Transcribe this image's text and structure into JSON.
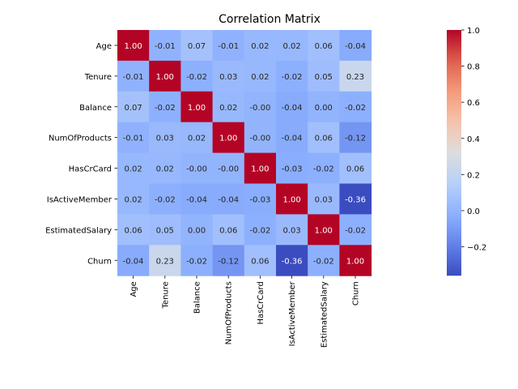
{
  "chart_data": {
    "type": "heatmap",
    "title": "Correlation Matrix",
    "xlabel": "",
    "ylabel": "",
    "x_labels": [
      "Age",
      "Tenure",
      "Balance",
      "NumOfProducts",
      "HasCrCard",
      "IsActiveMember",
      "EstimatedSalary",
      "Churn"
    ],
    "y_labels": [
      "Age",
      "Tenure",
      "Balance",
      "NumOfProducts",
      "HasCrCard",
      "IsActiveMember",
      "EstimatedSalary",
      "Churn"
    ],
    "values": [
      [
        1.0,
        -0.01,
        0.07,
        -0.01,
        0.02,
        0.02,
        0.06,
        -0.04
      ],
      [
        -0.01,
        1.0,
        -0.02,
        0.03,
        0.02,
        -0.02,
        0.05,
        0.23
      ],
      [
        0.07,
        -0.02,
        1.0,
        0.02,
        -0.0,
        -0.04,
        0.0,
        -0.02
      ],
      [
        -0.01,
        0.03,
        0.02,
        1.0,
        -0.0,
        -0.04,
        0.06,
        -0.12
      ],
      [
        0.02,
        0.02,
        -0.0,
        -0.0,
        1.0,
        -0.03,
        -0.02,
        0.06
      ],
      [
        0.02,
        -0.02,
        -0.04,
        -0.04,
        -0.03,
        1.0,
        0.03,
        -0.36
      ],
      [
        0.06,
        0.05,
        0.0,
        0.06,
        -0.02,
        0.03,
        1.0,
        -0.02
      ],
      [
        -0.04,
        0.23,
        -0.02,
        -0.12,
        0.06,
        -0.36,
        -0.02,
        1.0
      ]
    ],
    "annotation_format": "0.00",
    "colormap": "coolwarm",
    "vmin": -0.36,
    "vmax": 1.0,
    "colorbar_ticks": [
      -0.2,
      0.0,
      0.2,
      0.4,
      0.6,
      0.8,
      1.0
    ],
    "colorbar_tick_labels": [
      "−0.2",
      "0.0",
      "0.2",
      "0.4",
      "0.6",
      "0.8",
      "1.0"
    ],
    "grid": false,
    "legend": "colorbar-right"
  }
}
